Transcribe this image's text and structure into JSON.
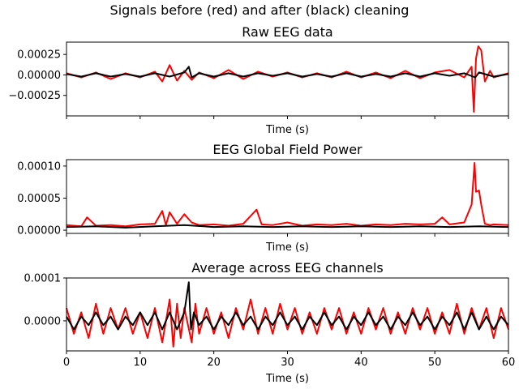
{
  "figure": {
    "suptitle": "Signals before (red) and after (black) cleaning"
  },
  "colors": {
    "before": "#ff0000",
    "after": "#000000"
  },
  "chart_data": [
    {
      "type": "line",
      "title": "Raw EEG data",
      "xlabel": "Time (s)",
      "ylabel": "",
      "xlim": [
        0,
        60
      ],
      "ylim": [
        -0.0005,
        0.0004
      ],
      "yticks": [
        -0.00025,
        0.0,
        0.00025
      ],
      "ytick_labels": [
        "−0.00025",
        "0.00000",
        "0.00025"
      ],
      "xticks": [
        0,
        10,
        20,
        30,
        40,
        50,
        60
      ],
      "xtick_labels": [
        "",
        "",
        "",
        "",
        "",
        "",
        ""
      ],
      "grid": false,
      "legend": "none",
      "series": [
        {
          "color": "#ff0000",
          "x": [
            0,
            2,
            4,
            6,
            8,
            10,
            12,
            13,
            14,
            15,
            16,
            17,
            18,
            20,
            22,
            24,
            26,
            28,
            30,
            32,
            34,
            36,
            38,
            40,
            42,
            44,
            46,
            48,
            50,
            52,
            54,
            55,
            55.3,
            55.6,
            55.9,
            56.3,
            56.8,
            57.5,
            58,
            60
          ],
          "y": [
            2e-05,
            -3e-05,
            3e-05,
            -5e-05,
            2e-05,
            -3e-05,
            4e-05,
            -8e-05,
            0.00012,
            -7e-05,
            5e-05,
            -6e-05,
            3e-05,
            -4e-05,
            6e-05,
            -5e-05,
            4e-05,
            -2e-05,
            3e-05,
            -3e-05,
            2e-05,
            -3e-05,
            4e-05,
            -3e-05,
            3e-05,
            -4e-05,
            5e-05,
            -4e-05,
            3e-05,
            6e-05,
            -3e-05,
            0.0001,
            -0.00045,
            0.0002,
            0.00035,
            0.0003,
            -8e-05,
            5e-05,
            -3e-05,
            2e-05
          ]
        },
        {
          "color": "#000000",
          "x": [
            0,
            2,
            4,
            6,
            8,
            10,
            12,
            14,
            16,
            16.6,
            17,
            18,
            20,
            22,
            24,
            26,
            28,
            30,
            32,
            34,
            36,
            38,
            40,
            42,
            44,
            46,
            48,
            50,
            52,
            54,
            55.5,
            56,
            58,
            60
          ],
          "y": [
            1e-05,
            -2e-05,
            2e-05,
            -2e-05,
            1e-05,
            -2e-05,
            2e-05,
            -2e-05,
            3e-05,
            0.0001,
            -3e-05,
            2e-05,
            -2e-05,
            2e-05,
            -2e-05,
            2e-05,
            -1e-05,
            2e-05,
            -2e-05,
            1e-05,
            -2e-05,
            2e-05,
            -2e-05,
            1e-05,
            -2e-05,
            2e-05,
            -2e-05,
            2e-05,
            -1e-05,
            2e-05,
            -3e-05,
            3e-05,
            -2e-05,
            1e-05
          ]
        }
      ]
    },
    {
      "type": "line",
      "title": "EEG Global Field Power",
      "xlabel": "Time (s)",
      "ylabel": "",
      "xlim": [
        0,
        60
      ],
      "ylim": [
        -5e-06,
        0.00011
      ],
      "yticks": [
        0.0,
        5e-05,
        0.0001
      ],
      "ytick_labels": [
        "0.00000",
        "0.00005",
        "0.00010"
      ],
      "xticks": [
        0,
        10,
        20,
        30,
        40,
        50,
        60
      ],
      "xtick_labels": [
        "",
        "",
        "",
        "",
        "",
        "",
        ""
      ],
      "grid": false,
      "legend": "none",
      "series": [
        {
          "color": "#ff0000",
          "x": [
            0,
            2,
            2.8,
            4,
            6,
            8,
            10,
            12,
            13,
            13.5,
            14,
            15,
            16,
            17,
            18,
            20,
            22,
            24,
            25.8,
            26.5,
            28,
            30,
            32,
            34,
            36,
            38,
            40,
            42,
            44,
            46,
            48,
            50,
            51,
            52,
            54,
            55,
            55.4,
            55.6,
            56,
            56.3,
            56.8,
            57.5,
            58,
            60
          ],
          "y": [
            8e-06,
            6e-06,
            2e-05,
            7e-06,
            8e-06,
            6e-06,
            9e-06,
            1e-05,
            3e-05,
            8e-06,
            2.8e-05,
            1e-05,
            2.5e-05,
            1.2e-05,
            8e-06,
            9e-06,
            7e-06,
            1e-05,
            3.2e-05,
            9e-06,
            8e-06,
            1.2e-05,
            7e-06,
            9e-06,
            8e-06,
            1e-05,
            7e-06,
            9e-06,
            8e-06,
            1e-05,
            9e-06,
            1e-05,
            2e-05,
            9e-06,
            1.2e-05,
            4e-05,
            0.000105,
            6e-05,
            6.2e-05,
            4e-05,
            1e-05,
            8e-06,
            9e-06,
            8e-06
          ]
        },
        {
          "color": "#000000",
          "x": [
            0,
            4,
            8,
            12,
            16,
            20,
            24,
            28,
            32,
            36,
            40,
            44,
            48,
            52,
            56,
            60
          ],
          "y": [
            5e-06,
            6e-06,
            4e-06,
            6e-06,
            8e-06,
            5e-06,
            6e-06,
            5e-06,
            6e-06,
            5e-06,
            6e-06,
            5e-06,
            6e-06,
            5e-06,
            6e-06,
            5e-06
          ]
        }
      ]
    },
    {
      "type": "line",
      "title": "Average across EEG channels",
      "xlabel": "Time (s)",
      "ylabel": "",
      "xlim": [
        0,
        60
      ],
      "ylim": [
        -7e-05,
        0.0001
      ],
      "yticks": [
        0.0,
        0.0001
      ],
      "ytick_labels": [
        "0.0000",
        "0.0001"
      ],
      "xticks": [
        0,
        10,
        20,
        30,
        40,
        50,
        60
      ],
      "xtick_labels": [
        "0",
        "10",
        "20",
        "30",
        "40",
        "50",
        "60"
      ],
      "grid": false,
      "legend": "none",
      "series": [
        {
          "color": "#ff0000",
          "x": [
            0,
            1,
            2,
            3,
            4,
            5,
            6,
            7,
            8,
            9,
            10,
            11,
            12,
            13,
            14,
            14.5,
            15,
            15.5,
            16,
            17,
            17.5,
            18,
            19,
            20,
            21,
            22,
            23,
            24,
            25,
            26,
            27,
            28,
            29,
            30,
            31,
            32,
            33,
            34,
            35,
            36,
            37,
            38,
            39,
            40,
            41,
            42,
            43,
            44,
            45,
            46,
            47,
            48,
            49,
            50,
            51,
            52,
            53,
            54,
            55,
            56,
            57,
            58,
            59,
            60
          ],
          "y": [
            3e-05,
            -3e-05,
            2e-05,
            -4e-05,
            4e-05,
            -3e-05,
            3e-05,
            -2e-05,
            3e-05,
            -3e-05,
            2e-05,
            -4e-05,
            3e-05,
            -5e-05,
            5e-05,
            -6e-05,
            4e-05,
            -4e-05,
            3e-05,
            -5e-05,
            4e-05,
            -3e-05,
            3e-05,
            -3e-05,
            2e-05,
            -4e-05,
            3e-05,
            -2e-05,
            5e-05,
            -3e-05,
            3e-05,
            -3e-05,
            4e-05,
            -2e-05,
            3e-05,
            -3e-05,
            2e-05,
            -3e-05,
            3e-05,
            -2e-05,
            3e-05,
            -3e-05,
            2e-05,
            -3e-05,
            3e-05,
            -2e-05,
            3e-05,
            -3e-05,
            2e-05,
            -3e-05,
            3e-05,
            -2e-05,
            3e-05,
            -3e-05,
            2e-05,
            -3e-05,
            4e-05,
            -3e-05,
            3e-05,
            -2e-05,
            3e-05,
            -4e-05,
            3e-05,
            -2e-05
          ]
        },
        {
          "color": "#000000",
          "x": [
            0,
            1,
            2,
            3,
            4,
            5,
            6,
            7,
            8,
            9,
            10,
            11,
            12,
            13,
            14,
            15,
            16,
            16.6,
            16.9,
            17.3,
            18,
            19,
            20,
            21,
            22,
            23,
            24,
            25,
            26,
            27,
            28,
            29,
            30,
            31,
            32,
            33,
            34,
            35,
            36,
            37,
            38,
            39,
            40,
            41,
            42,
            43,
            44,
            45,
            46,
            47,
            48,
            49,
            50,
            51,
            52,
            53,
            54,
            55,
            56,
            57,
            58,
            59,
            60
          ],
          "y": [
            1e-05,
            -2e-05,
            1e-05,
            -1e-05,
            2e-05,
            -1e-05,
            1e-05,
            -2e-05,
            1e-05,
            -1e-05,
            2e-05,
            -1e-05,
            2e-05,
            -2e-05,
            2e-05,
            -2e-05,
            2e-05,
            9e-05,
            -2e-05,
            2e-05,
            -1e-05,
            1e-05,
            -2e-05,
            1e-05,
            -1e-05,
            2e-05,
            -1e-05,
            1e-05,
            -2e-05,
            1e-05,
            -1e-05,
            2e-05,
            -1e-05,
            1e-05,
            -2e-05,
            1e-05,
            -1e-05,
            2e-05,
            -1e-05,
            1e-05,
            -2e-05,
            1e-05,
            -1e-05,
            2e-05,
            -1e-05,
            1e-05,
            -2e-05,
            1e-05,
            -1e-05,
            2e-05,
            -1e-05,
            1e-05,
            -2e-05,
            1e-05,
            -1e-05,
            2e-05,
            -2e-05,
            2e-05,
            -2e-05,
            1e-05,
            -2e-05,
            1e-05,
            -1e-05
          ]
        }
      ]
    }
  ]
}
